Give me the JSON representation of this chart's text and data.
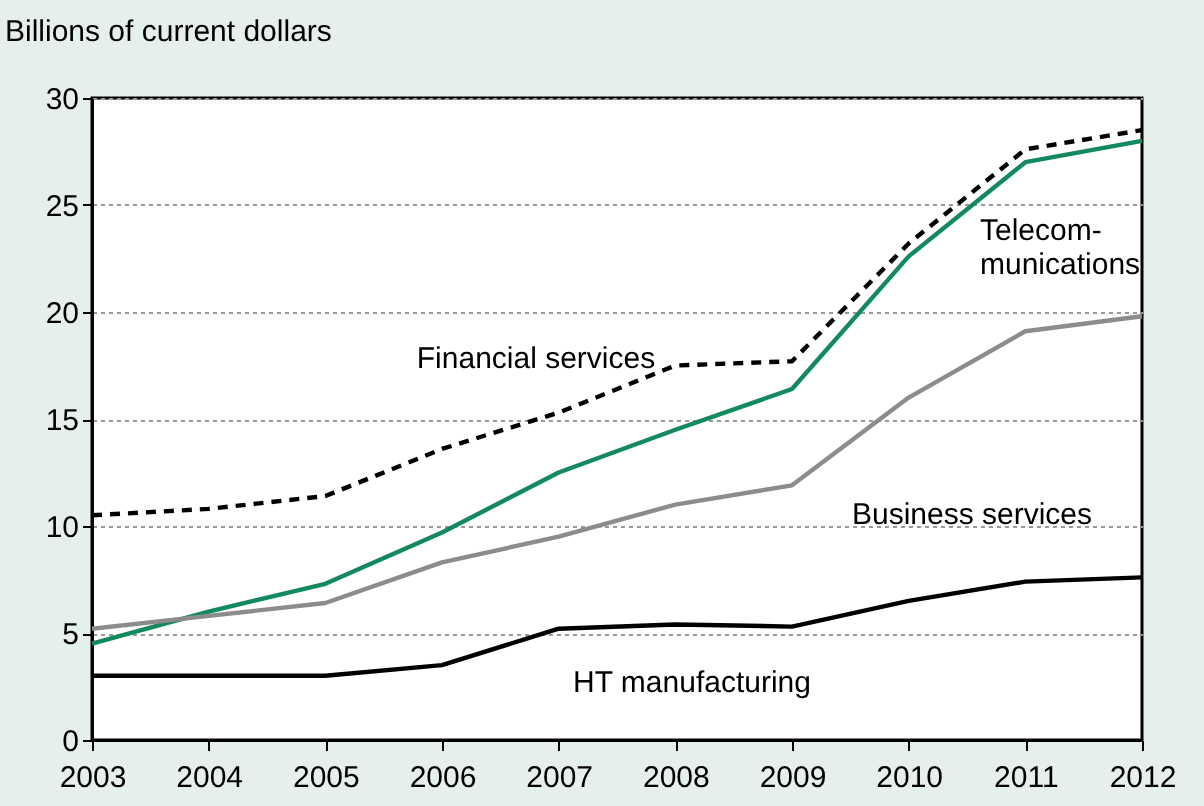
{
  "chart_data": {
    "type": "line",
    "ylabel": "Billions of current dollars",
    "x": [
      2003,
      2004,
      2005,
      2006,
      2007,
      2008,
      2009,
      2010,
      2011,
      2012
    ],
    "xlim": [
      2003,
      2012
    ],
    "xticks": [
      2003,
      2004,
      2005,
      2006,
      2007,
      2008,
      2009,
      2010,
      2011,
      2012
    ],
    "ylim": [
      0,
      30
    ],
    "yticks": [
      0,
      5,
      10,
      15,
      20,
      25,
      30
    ],
    "grid": "y",
    "legend": false,
    "marker": "none",
    "series": [
      {
        "name": "Financial services",
        "color": "#000000",
        "line_style": "dashed",
        "values": [
          10.5,
          10.8,
          11.4,
          13.6,
          15.3,
          17.5,
          17.7,
          23.2,
          27.6,
          28.5
        ]
      },
      {
        "name": "Telecom-\nmunications",
        "color": "#138a5e",
        "line_style": "solid",
        "values": [
          4.5,
          6.0,
          7.3,
          9.7,
          12.5,
          14.5,
          16.4,
          22.6,
          27.0,
          28.0
        ]
      },
      {
        "name": "Business services",
        "color": "#8c8c8c",
        "line_style": "solid",
        "values": [
          5.2,
          5.8,
          6.4,
          8.3,
          9.5,
          11.0,
          11.9,
          16.0,
          19.1,
          19.8
        ]
      },
      {
        "name": "HT manufacturing",
        "color": "#000000",
        "line_style": "solid",
        "values": [
          3.0,
          3.0,
          3.0,
          3.5,
          5.2,
          5.4,
          5.3,
          6.5,
          7.4,
          7.6
        ]
      }
    ]
  }
}
